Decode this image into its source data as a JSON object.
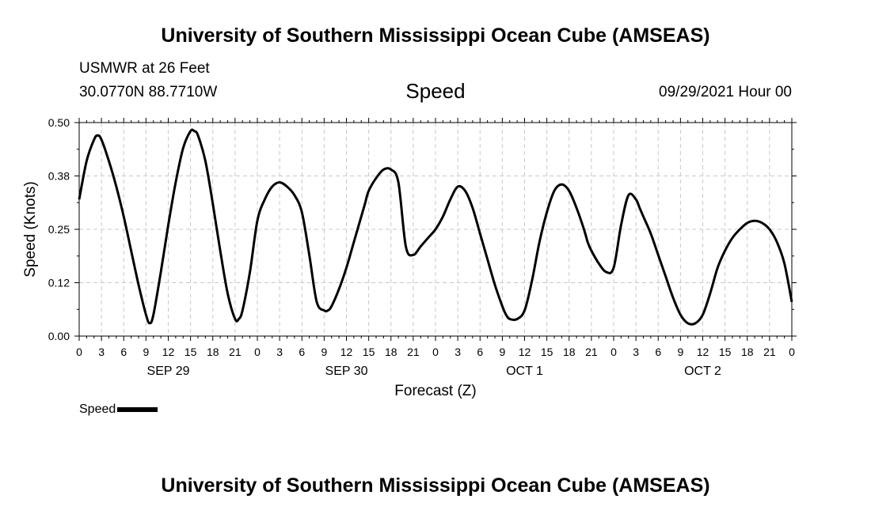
{
  "header": {
    "title": "University of Southern Mississippi Ocean Cube (AMSEAS)",
    "station": "USMWR at 26 Feet",
    "location": "30.0770N  88.7710W",
    "plot_name": "Speed",
    "datetime": "09/29/2021 Hour 00"
  },
  "footer": {
    "title": "University of Southern Mississippi Ocean Cube (AMSEAS)"
  },
  "legend": {
    "label": "Speed"
  },
  "colors": {
    "line": "#000000",
    "grid": "#c8c8c8",
    "background": "#ffffff"
  },
  "chart_data": {
    "type": "line",
    "title": "Speed",
    "xlabel": "Forecast (Z)",
    "ylabel": "Speed (Knots)",
    "ylim": [
      0,
      0.5
    ],
    "xlim": [
      0,
      96
    ],
    "grid": true,
    "y_ticks": [
      0,
      0.125,
      0.25,
      0.375,
      0.5
    ],
    "y_tick_labels": [
      "0.00",
      "0.12",
      "0.25",
      "0.38",
      "0.50"
    ],
    "x_ticks": [
      0,
      3,
      6,
      9,
      12,
      15,
      18,
      21,
      24,
      27,
      30,
      33,
      36,
      39,
      42,
      45,
      48,
      51,
      54,
      57,
      60,
      63,
      66,
      69,
      72,
      75,
      78,
      81,
      84,
      87,
      90,
      93,
      96
    ],
    "x_tick_labels": [
      "0",
      "3",
      "6",
      "9",
      "12",
      "15",
      "18",
      "21",
      "0",
      "3",
      "6",
      "9",
      "12",
      "15",
      "18",
      "21",
      "0",
      "3",
      "6",
      "9",
      "12",
      "15",
      "18",
      "21",
      "0",
      "3",
      "6",
      "9",
      "12",
      "15",
      "18",
      "21",
      "0"
    ],
    "date_labels": [
      {
        "x": 12,
        "label": "SEP 29"
      },
      {
        "x": 36,
        "label": "SEP 30"
      },
      {
        "x": 60,
        "label": "OCT 1"
      },
      {
        "x": 84,
        "label": "OCT 2"
      }
    ],
    "series": [
      {
        "name": "Speed",
        "x": [
          0,
          1,
          2,
          2.5,
          3,
          4,
          5,
          6,
          7,
          8,
          9,
          9.5,
          10,
          11,
          12,
          13,
          14,
          15,
          15.5,
          16,
          17,
          18,
          19,
          20,
          21,
          21.5,
          22,
          23,
          24,
          25,
          26,
          27,
          28,
          29,
          30,
          31,
          32,
          33,
          33.5,
          34,
          35,
          36,
          37,
          38,
          38.5,
          39,
          40,
          41,
          42,
          43,
          44,
          45,
          46,
          47,
          48,
          49,
          50,
          51,
          52,
          53,
          54,
          55,
          56,
          57,
          57.5,
          58,
          59,
          60,
          61,
          62,
          63,
          64,
          65,
          66,
          67,
          68,
          68.5,
          69,
          70,
          71,
          72,
          73,
          74,
          75,
          75.5,
          76,
          77,
          78,
          79,
          80,
          81,
          82,
          83,
          84,
          85,
          86,
          87,
          88,
          89,
          90,
          91,
          92,
          93,
          94,
          95,
          96
        ],
        "values": [
          0.32,
          0.41,
          0.46,
          0.47,
          0.46,
          0.41,
          0.35,
          0.28,
          0.2,
          0.12,
          0.05,
          0.03,
          0.05,
          0.15,
          0.26,
          0.36,
          0.44,
          0.48,
          0.48,
          0.47,
          0.41,
          0.31,
          0.2,
          0.1,
          0.04,
          0.04,
          0.06,
          0.15,
          0.27,
          0.32,
          0.35,
          0.36,
          0.35,
          0.33,
          0.29,
          0.19,
          0.08,
          0.06,
          0.06,
          0.07,
          0.11,
          0.16,
          0.22,
          0.28,
          0.31,
          0.34,
          0.37,
          0.39,
          0.39,
          0.36,
          0.21,
          0.19,
          0.21,
          0.23,
          0.25,
          0.28,
          0.32,
          0.35,
          0.34,
          0.3,
          0.24,
          0.18,
          0.12,
          0.07,
          0.05,
          0.04,
          0.04,
          0.06,
          0.13,
          0.22,
          0.29,
          0.34,
          0.355,
          0.34,
          0.3,
          0.25,
          0.22,
          0.2,
          0.17,
          0.15,
          0.16,
          0.26,
          0.33,
          0.32,
          0.3,
          0.28,
          0.24,
          0.19,
          0.14,
          0.09,
          0.05,
          0.03,
          0.03,
          0.05,
          0.1,
          0.16,
          0.2,
          0.23,
          0.25,
          0.265,
          0.27,
          0.265,
          0.25,
          0.22,
          0.17,
          0.08
        ]
      }
    ]
  }
}
